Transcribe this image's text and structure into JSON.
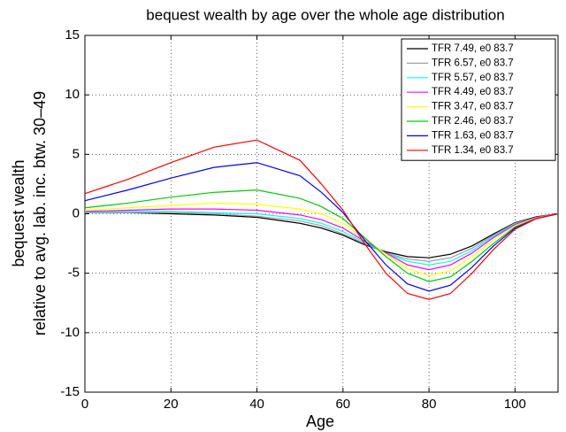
{
  "chart_data": {
    "type": "line",
    "title": "bequest wealth by age over the whole age distribution",
    "x_label": "Age",
    "y_label": [
      "bequest wealth",
      "relative to avg. lab. inc. btw. 30–49"
    ],
    "x": [
      0,
      10,
      20,
      30,
      40,
      50,
      55,
      60,
      65,
      70,
      75,
      80,
      85,
      90,
      95,
      100,
      105,
      110
    ],
    "series": [
      {
        "name": "TFR 7.49, e0 83.7",
        "color": "#000000",
        "values": [
          0.1,
          0.1,
          0,
          -0.1,
          -0.3,
          -0.8,
          -1.2,
          -1.8,
          -2.6,
          -3.2,
          -3.6,
          -3.7,
          -3.4,
          -2.7,
          -1.7,
          -0.75,
          -0.25,
          0
        ]
      },
      {
        "name": "TFR 6.57, e0 83.7",
        "color": "#a0a0a0",
        "values": [
          0.1,
          0.1,
          0.1,
          0,
          -0.2,
          -0.6,
          -1,
          -1.7,
          -2.5,
          -3.3,
          -3.8,
          -4,
          -3.7,
          -2.9,
          -1.8,
          -0.8,
          -0.3,
          0
        ]
      },
      {
        "name": "TFR 5.57, e0 83.7",
        "color": "#00ffff",
        "values": [
          0.15,
          0.2,
          0.2,
          0.1,
          0,
          -0.4,
          -0.8,
          -1.5,
          -2.4,
          -3.3,
          -4,
          -4.3,
          -4,
          -3.1,
          -1.9,
          -0.85,
          -0.3,
          0
        ]
      },
      {
        "name": "TFR 4.49, e0 83.7",
        "color": "#ff00ff",
        "values": [
          0.2,
          0.3,
          0.4,
          0.4,
          0.3,
          -0.1,
          -0.5,
          -1.2,
          -2.3,
          -3.3,
          -4.3,
          -4.7,
          -4.3,
          -3.3,
          -2,
          -0.9,
          -0.3,
          0
        ]
      },
      {
        "name": "TFR 3.47, e0 83.7",
        "color": "#ffff00",
        "values": [
          0.3,
          0.5,
          0.7,
          0.9,
          0.8,
          0.4,
          0,
          -0.8,
          -2.1,
          -3.4,
          -4.6,
          -5.2,
          -4.8,
          -3.6,
          -2.2,
          -1,
          -0.35,
          0
        ]
      },
      {
        "name": "TFR 2.46, e0 83.7",
        "color": "#00cc00",
        "values": [
          0.5,
          0.9,
          1.4,
          1.8,
          2,
          1.3,
          0.6,
          -0.4,
          -2,
          -3.6,
          -5,
          -5.7,
          -5.3,
          -4,
          -2.5,
          -1.1,
          -0.4,
          0
        ]
      },
      {
        "name": "TFR 1.63, e0 83.7",
        "color": "#0000ff",
        "values": [
          1.1,
          2,
          3,
          3.9,
          4.3,
          3.2,
          1.8,
          0.1,
          -2.2,
          -4.3,
          -5.9,
          -6.5,
          -6,
          -4.5,
          -2.7,
          -1.2,
          -0.4,
          0
        ]
      },
      {
        "name": "TFR 1.34, e0 83.7",
        "color": "#ff0000",
        "values": [
          1.7,
          2.9,
          4.3,
          5.6,
          6.2,
          4.5,
          2.5,
          0.3,
          -2.5,
          -5,
          -6.7,
          -7.2,
          -6.7,
          -5,
          -3,
          -1.3,
          -0.4,
          0
        ]
      }
    ],
    "xlim": [
      0,
      110
    ],
    "xticks": [
      0,
      20,
      40,
      60,
      80,
      100
    ],
    "ylim": [
      -15,
      15
    ],
    "yticks": [
      -15,
      -10,
      -5,
      0,
      5,
      10,
      15
    ],
    "grid": true,
    "legend": "top-right"
  }
}
